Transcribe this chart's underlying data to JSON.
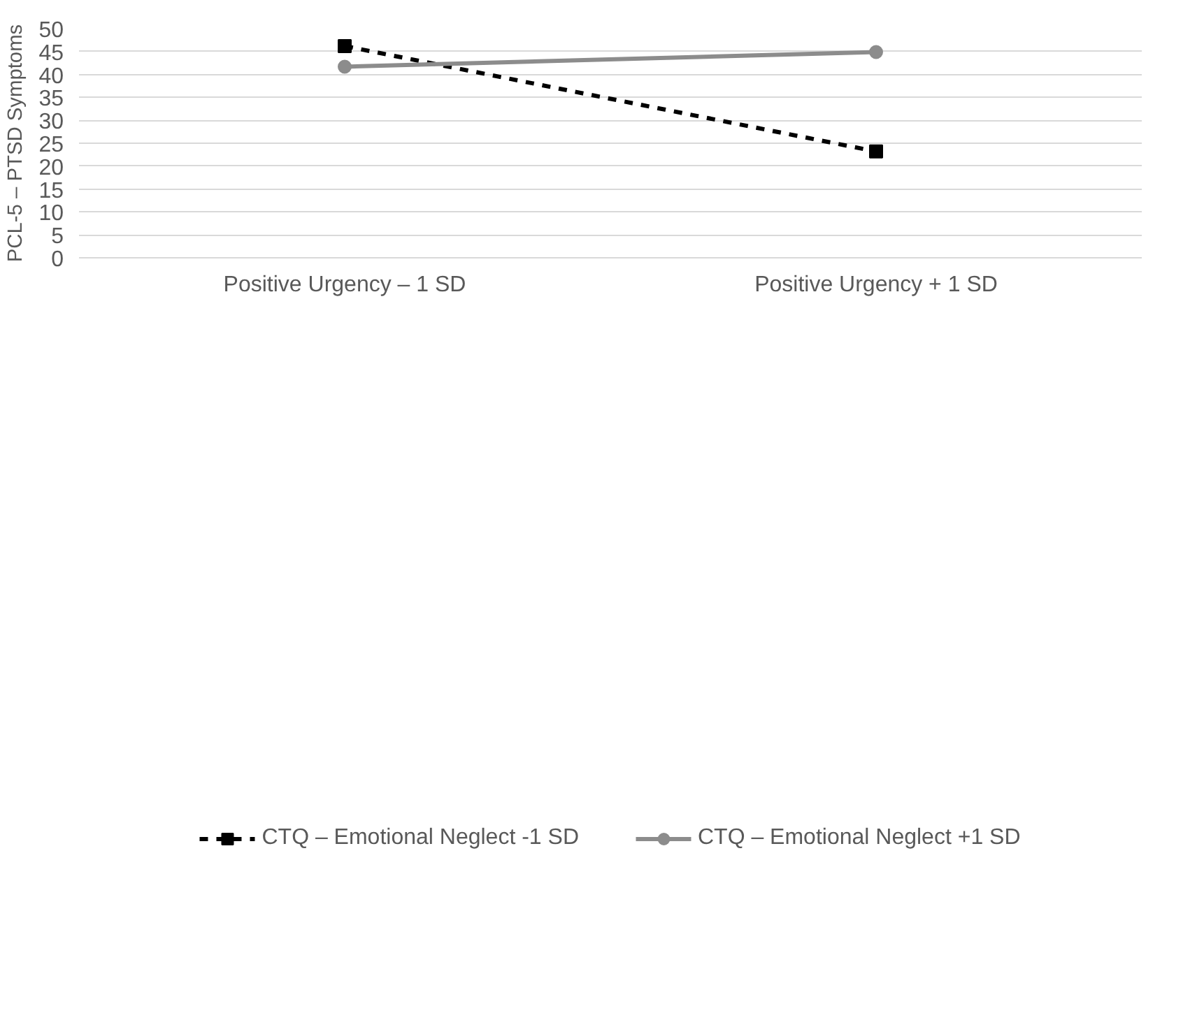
{
  "chart_data": {
    "type": "line",
    "ylabel": "PCL-5 – PTSD Symptoms",
    "categories": [
      "Positive Urgency – 1 SD",
      "Positive Urgency + 1 SD"
    ],
    "series": [
      {
        "name": "CTQ – Emotional Neglect -1 SD",
        "color": "#000000",
        "values": [
          46.2,
          23.2
        ],
        "marker": "square",
        "line_style": "dashed"
      },
      {
        "name": "CTQ – Emotional Neglect +1 SD",
        "color": "#8c8c8c",
        "values": [
          41.7,
          44.9
        ],
        "marker": "circle",
        "line_style": "solid"
      }
    ],
    "ylim": [
      0,
      50
    ],
    "yticks": [
      0,
      5,
      10,
      15,
      20,
      25,
      30,
      35,
      40,
      45,
      50
    ],
    "grid": "y",
    "legend": "bottom"
  }
}
